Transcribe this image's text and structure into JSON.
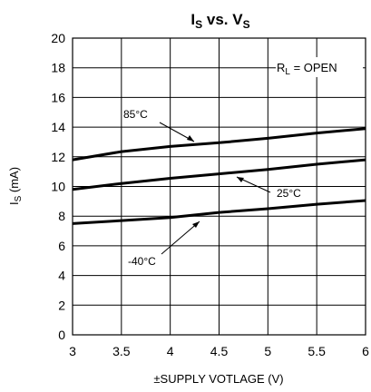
{
  "chart_data": {
    "type": "line",
    "title_main": "I",
    "title_sub1": "S",
    "title_mid": " vs. V",
    "title_sub2": "S",
    "ylabel_main": "I",
    "ylabel_sub": "S",
    "ylabel_unit": " (mA)",
    "xlabel": "±SUPPLY VOTLAGE (V)",
    "xlim": [
      3,
      6
    ],
    "ylim": [
      0,
      20
    ],
    "xticks": [
      3,
      3.5,
      4,
      4.5,
      5,
      5.5,
      6
    ],
    "xtick_labels": [
      "3",
      "3.5",
      "4",
      "4.5",
      "5",
      "5.5",
      "6"
    ],
    "yticks": [
      0,
      2,
      4,
      6,
      8,
      10,
      12,
      14,
      16,
      18,
      20
    ],
    "ytick_labels": [
      "0",
      "2",
      "4",
      "6",
      "8",
      "10",
      "12",
      "14",
      "16",
      "18",
      "20"
    ],
    "grid": true,
    "condition_main": "R",
    "condition_sub": "L",
    "condition_rest": " = OPEN",
    "series": [
      {
        "label": "85°C",
        "x": [
          3,
          3.5,
          4,
          4.5,
          5,
          5.5,
          6
        ],
        "y": [
          11.8,
          12.35,
          12.7,
          12.95,
          13.25,
          13.6,
          13.9
        ]
      },
      {
        "label": "25°C",
        "x": [
          3,
          3.5,
          4,
          4.5,
          5,
          5.5,
          6
        ],
        "y": [
          9.8,
          10.2,
          10.55,
          10.85,
          11.15,
          11.5,
          11.8
        ]
      },
      {
        "label": "-40°C",
        "x": [
          3,
          3.5,
          4,
          4.5,
          5,
          5.5,
          6
        ],
        "y": [
          7.5,
          7.7,
          7.9,
          8.25,
          8.5,
          8.8,
          9.05
        ]
      }
    ]
  }
}
